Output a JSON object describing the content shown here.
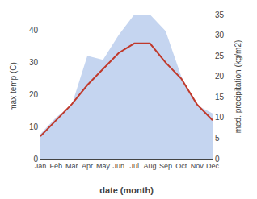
{
  "chart_data": {
    "type": "line",
    "xlabel": "date (month)",
    "ylabel": "max temp (C)",
    "y2label": "med. precipitation (kg/m2)",
    "categories": [
      "Jan",
      "Feb",
      "Mar",
      "Apr",
      "May",
      "Jun",
      "Jul",
      "Aug",
      "Sep",
      "Oct",
      "Nov",
      "Dec"
    ],
    "series": [
      {
        "type": "area",
        "axis": "y2",
        "color": "#c5d5f0",
        "values": [
          6,
          10,
          13,
          25,
          24,
          30,
          35,
          35,
          31,
          20,
          13,
          11
        ]
      },
      {
        "type": "line",
        "color": "#c0392b",
        "values": [
          7,
          12,
          17,
          23,
          28,
          33,
          36,
          36,
          30,
          25,
          17,
          12
        ]
      }
    ],
    "ylim": [
      0,
      45
    ],
    "yticks": [
      0,
      10,
      20,
      30,
      40
    ],
    "y2lim": [
      0,
      35
    ],
    "y2ticks": [
      0,
      5,
      10,
      15,
      20,
      25,
      30,
      35
    ],
    "grid": false
  }
}
